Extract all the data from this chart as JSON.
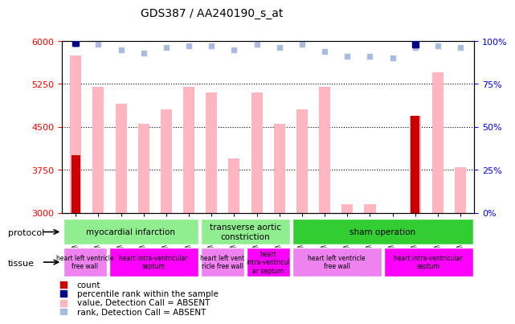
{
  "title": "GDS387 / AA240190_s_at",
  "samples": [
    "GSM6118",
    "GSM6119",
    "GSM6120",
    "GSM6121",
    "GSM6122",
    "GSM6123",
    "GSM6132",
    "GSM6133",
    "GSM6134",
    "GSM6135",
    "GSM6124",
    "GSM6125",
    "GSM6126",
    "GSM6127",
    "GSM6128",
    "GSM6129",
    "GSM6130",
    "GSM6131"
  ],
  "pink_bar_values": [
    5750,
    5200,
    4900,
    4550,
    4800,
    5200,
    5100,
    3950,
    5100,
    4550,
    4800,
    5200,
    3150,
    3150,
    null,
    4700,
    5450,
    3800
  ],
  "dark_red_values": [
    4000,
    null,
    null,
    null,
    null,
    null,
    null,
    null,
    null,
    null,
    null,
    null,
    null,
    null,
    null,
    4700,
    null,
    null
  ],
  "light_blue_ranks": [
    98,
    98,
    95,
    93,
    96,
    97,
    97,
    95,
    98,
    96,
    98,
    94,
    91,
    91,
    90,
    96,
    97,
    96
  ],
  "dark_blue_ranks": [
    99,
    null,
    null,
    null,
    null,
    null,
    null,
    null,
    null,
    null,
    null,
    null,
    null,
    null,
    null,
    98,
    null,
    null
  ],
  "ylim_left": [
    3000,
    6000
  ],
  "ylim_right": [
    0,
    100
  ],
  "yticks_left": [
    3000,
    3750,
    4500,
    5250,
    6000
  ],
  "yticks_right": [
    0,
    25,
    50,
    75,
    100
  ],
  "proto_segments": [
    {
      "label": "myocardial infarction",
      "start": 0,
      "end": 6,
      "color": "#90EE90"
    },
    {
      "label": "transverse aortic\nconstriction",
      "start": 6,
      "end": 10,
      "color": "#90EE90"
    },
    {
      "label": "sham operation",
      "start": 10,
      "end": 18,
      "color": "#32CD32"
    }
  ],
  "tissue_segments": [
    {
      "label": "heart left ventricle\nfree wall",
      "start": 0,
      "end": 2,
      "color": "#EE82EE"
    },
    {
      "label": "heart intra-ventricular\nseptum",
      "start": 2,
      "end": 6,
      "color": "#FF00FF"
    },
    {
      "label": "heart left vent\nricle free wall",
      "start": 6,
      "end": 8,
      "color": "#EE82EE"
    },
    {
      "label": "heart\nintra-ventricul\nar septum",
      "start": 8,
      "end": 10,
      "color": "#FF00FF"
    },
    {
      "label": "heart left ventricle\nfree wall",
      "start": 10,
      "end": 14,
      "color": "#EE82EE"
    },
    {
      "label": "heart intra-ventricular\nseptum",
      "start": 14,
      "end": 18,
      "color": "#FF00FF"
    }
  ],
  "colors": {
    "dark_red": "#CC0000",
    "pink_bar": "#FFB6C1",
    "dark_blue": "#00008B",
    "light_blue": "#AABBDD",
    "background": "#F0F0F0"
  },
  "legend_items": [
    {
      "color": "#CC0000",
      "marker": "s",
      "label": "count"
    },
    {
      "color": "#00008B",
      "marker": "s",
      "label": "percentile rank within the sample"
    },
    {
      "color": "#FFB6C1",
      "marker": "s",
      "label": "value, Detection Call = ABSENT"
    },
    {
      "color": "#AABBDD",
      "marker": "s",
      "label": "rank, Detection Call = ABSENT"
    }
  ]
}
